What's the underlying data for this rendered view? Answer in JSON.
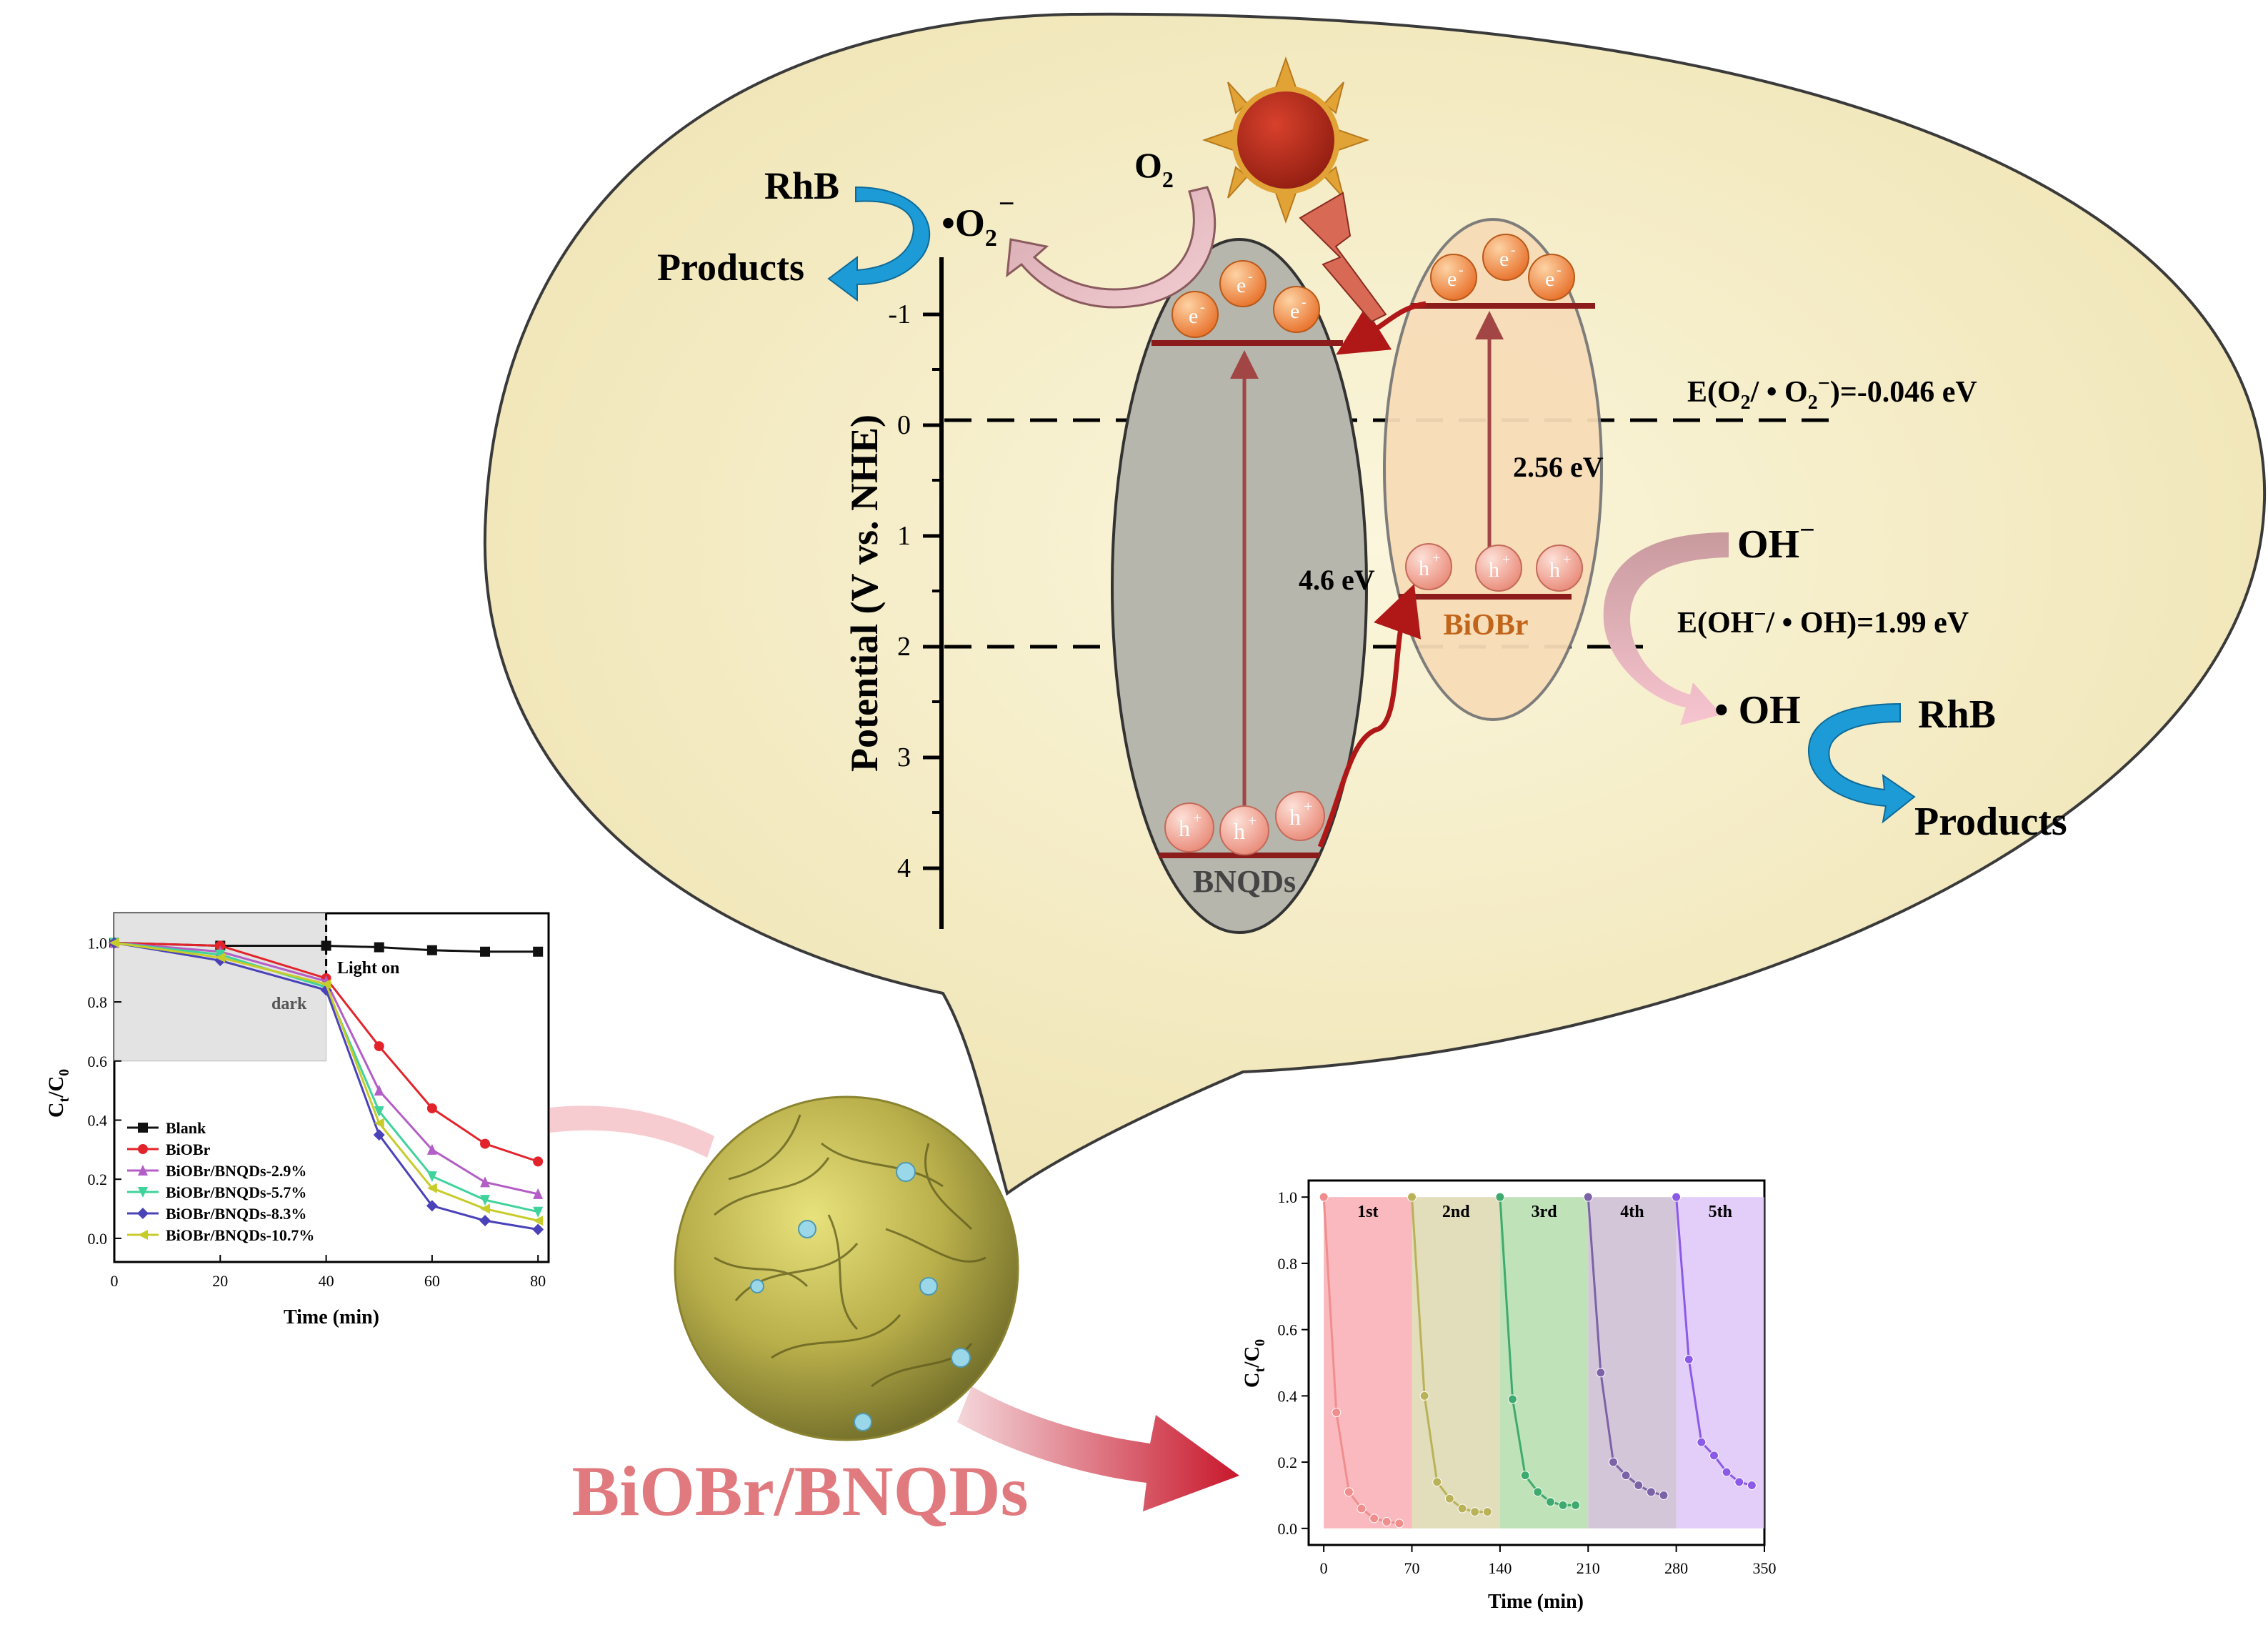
{
  "colors": {
    "bubble_fill": "#f8f1cf",
    "bubble_stroke": "#3a3a3a",
    "bnqds_fill": "#b7b7ad",
    "biobr_fill": "#f8dcb8",
    "band_line": "#9a1f1f",
    "electron": "#f08a3a",
    "hole": "#f4a898",
    "sun": "#b52a1b",
    "sun_rays": "#e2a336",
    "title_pink": "#e07a7e",
    "arrow_blue": "#1d9bd6",
    "arrow_pink": "#e9a6b0",
    "blank": "#111111",
    "biobr": "#e3232b",
    "bnqds_2_9": "#b35dc6",
    "bnqds_5_7": "#3fd39b",
    "bnqds_8_3": "#4a42b8",
    "bnqds_10_7": "#c8cc2a"
  },
  "mechanism": {
    "y_axis_label": "Potential (V vs. NHE)",
    "y_ticks": [
      "-1",
      "0",
      "1",
      "2",
      "3",
      "4"
    ],
    "bnqds_label": "BNQDs",
    "biobr_label": "BiOBr",
    "bnqds_gap": "4.6 eV",
    "biobr_gap": "2.56 eV",
    "electron_symbol": "e",
    "electron_sup": "-",
    "hole_symbol": "h",
    "hole_sup": "+",
    "o2": "O",
    "o2_sub": "2",
    "superoxide": "•O",
    "superoxide_sub": "2",
    "superoxide_sup": "−",
    "rhb_left": "RhB",
    "products_left": "Products",
    "rhb_right": "RhB",
    "products_right": "Products",
    "oh_minus": "OH",
    "oh_minus_sup": "−",
    "oh_radical": "• OH",
    "e_o2_a": "E(O",
    "e_o2_sub": "2",
    "e_o2_b": "/ • O",
    "e_o2_sub2": "2",
    "e_o2_sup": "−",
    "e_o2_c": ")=-0.046 eV",
    "e_oh_a": "E(OH",
    "e_oh_sup": "−",
    "e_oh_b": "/ • OH)=1.99 eV"
  },
  "material_title": "BiOBr/BNQDs",
  "chart_data": [
    {
      "type": "line",
      "ylabel": "C",
      "ylabel_sub_t": "t",
      "ylabel_sep": "/C",
      "ylabel_sub_0": "0",
      "xlabel": "Time (min)",
      "x_ticks": [
        "0",
        "20",
        "40",
        "60",
        "80"
      ],
      "y_ticks": [
        "0.0",
        "0.2",
        "0.4",
        "0.6",
        "0.8",
        "1.0"
      ],
      "xlim": [
        0,
        82
      ],
      "ylim": [
        -0.08,
        1.1
      ],
      "annotations": {
        "light_on": "Light on",
        "dark": "dark"
      },
      "dark_region": [
        0,
        40
      ],
      "x": [
        0,
        20,
        40,
        50,
        60,
        70,
        80
      ],
      "series": [
        {
          "name": "Blank",
          "values": [
            1.0,
            0.99,
            0.99,
            0.985,
            0.975,
            0.97,
            0.97
          ]
        },
        {
          "name": "BiOBr",
          "values": [
            1.0,
            0.99,
            0.88,
            0.65,
            0.44,
            0.32,
            0.26
          ]
        },
        {
          "name": "BiOBr/BNQDs-2.9%",
          "values": [
            1.0,
            0.97,
            0.87,
            0.5,
            0.3,
            0.19,
            0.15
          ]
        },
        {
          "name": "BiOBr/BNQDs-5.7%",
          "values": [
            1.0,
            0.96,
            0.85,
            0.43,
            0.21,
            0.13,
            0.09
          ]
        },
        {
          "name": "BiOBr/BNQDs-8.3%",
          "values": [
            1.0,
            0.94,
            0.84,
            0.35,
            0.11,
            0.06,
            0.03
          ]
        },
        {
          "name": "BiOBr/BNQDs-10.7%",
          "values": [
            1.0,
            0.95,
            0.86,
            0.39,
            0.17,
            0.1,
            0.06
          ]
        }
      ]
    },
    {
      "type": "line",
      "ylabel": "C",
      "ylabel_sub_t": "t",
      "ylabel_sep": "/C",
      "ylabel_sub_0": "0",
      "xlabel": "Time (min)",
      "x_ticks": [
        "0",
        "70",
        "140",
        "210",
        "280",
        "350"
      ],
      "y_ticks": [
        "0.0",
        "0.2",
        "0.4",
        "0.6",
        "0.8",
        "1.0"
      ],
      "xlim": [
        -12,
        350
      ],
      "ylim": [
        -0.05,
        1.05
      ],
      "cycles": [
        {
          "label": "1st",
          "color": "#f7a2a8",
          "line": "#f08e8e",
          "start": 0,
          "values": [
            1.0,
            0.35,
            0.11,
            0.06,
            0.03,
            0.02,
            0.015
          ]
        },
        {
          "label": "2nd",
          "color": "#d8d2a3",
          "line": "#b9b258",
          "start": 70,
          "values": [
            1.0,
            0.4,
            0.14,
            0.09,
            0.06,
            0.05,
            0.05
          ]
        },
        {
          "label": "3rd",
          "color": "#a9d8a1",
          "line": "#3faa6d",
          "start": 140,
          "values": [
            1.0,
            0.39,
            0.16,
            0.11,
            0.08,
            0.07,
            0.07
          ]
        },
        {
          "label": "4th",
          "color": "#c5b3cc",
          "line": "#7c62a6",
          "start": 210,
          "values": [
            1.0,
            0.47,
            0.2,
            0.16,
            0.13,
            0.11,
            0.1
          ]
        },
        {
          "label": "5th",
          "color": "#d8bdf5",
          "line": "#8b5ae6",
          "start": 280,
          "values": [
            1.0,
            0.51,
            0.26,
            0.22,
            0.17,
            0.14,
            0.13
          ]
        }
      ]
    }
  ]
}
